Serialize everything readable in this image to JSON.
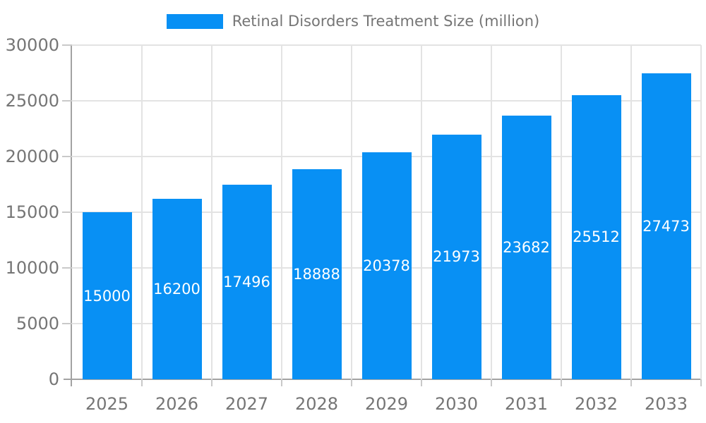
{
  "legend": {
    "label": "Retinal Disorders Treatment Size (million)"
  },
  "chart_data": {
    "type": "bar",
    "title": "",
    "categories": [
      "2025",
      "2026",
      "2027",
      "2028",
      "2029",
      "2030",
      "2031",
      "2032",
      "2033"
    ],
    "values": [
      15000,
      16200,
      17496,
      18888,
      20378,
      21973,
      23682,
      25512,
      27473
    ],
    "series_name": "Retinal Disorders Treatment Size (million)",
    "xlabel": "",
    "ylabel": "",
    "ylim": [
      0,
      30000
    ],
    "yticks": [
      0,
      5000,
      10000,
      15000,
      20000,
      25000,
      30000
    ],
    "grid": true,
    "legend_position": "top-center",
    "value_label_position": "inside-center",
    "colors": {
      "bar": "#0890F4",
      "value_label": "#FFFFFF",
      "axis_text": "#757575",
      "gridline": "#E3E3E3",
      "axis_line": "#A3A3A3",
      "tick": "#C9C9C9",
      "background": "#FFFFFF"
    }
  }
}
